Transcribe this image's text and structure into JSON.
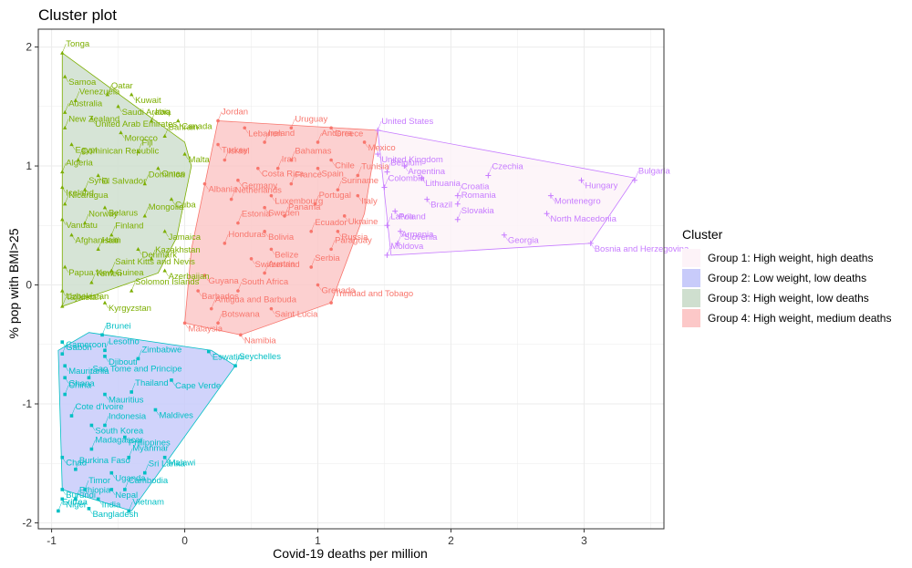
{
  "chart_data": {
    "type": "scatter",
    "title": "Cluster plot",
    "xlabel": "Covid-19 deaths per million",
    "ylabel": "% pop with BMI>25",
    "xlim": [
      -1.1,
      3.6
    ],
    "ylim": [
      -2.05,
      2.15
    ],
    "xticks": [
      -1,
      0,
      1,
      2,
      3
    ],
    "yticks": [
      -2,
      -1,
      0,
      1,
      2
    ],
    "grid": true,
    "legend": {
      "title": "Cluster",
      "position": "right",
      "entries": [
        {
          "label": "Group 1: High weight, high deaths",
          "color": "#C77CFF",
          "fill": "#FDF3F8"
        },
        {
          "label": "Group 2: Low weight, low deaths",
          "color": "#00BFC4",
          "fill": "#C8CBFA"
        },
        {
          "label": "Group 3: High weight, low deaths",
          "color": "#7CAE00",
          "fill": "#CFDFCF"
        },
        {
          "label": "Group 4: High weight, medium deaths",
          "color": "#F8766D",
          "fill": "#FCC8C8"
        }
      ]
    },
    "series": [
      {
        "cluster": 1,
        "marker": "cross",
        "color": "#C77CFF",
        "hull": [
          [
            1.45,
            1.3
          ],
          [
            1.55,
            0.25
          ],
          [
            3.05,
            0.35
          ],
          [
            3.38,
            0.9
          ]
        ],
        "points": [
          {
            "name": "United States",
            "x": 1.45,
            "y": 1.3
          },
          {
            "name": "United Kingdom",
            "x": 1.45,
            "y": 1.1
          },
          {
            "name": "Belgium",
            "x": 1.52,
            "y": 0.95
          },
          {
            "name": "Argentina",
            "x": 1.65,
            "y": 1.0
          },
          {
            "name": "Colombia",
            "x": 1.5,
            "y": 0.82
          },
          {
            "name": "Lithuania",
            "x": 1.78,
            "y": 0.9
          },
          {
            "name": "Czechia",
            "x": 2.28,
            "y": 0.92
          },
          {
            "name": "Hungary",
            "x": 2.98,
            "y": 0.88
          },
          {
            "name": "Bulgaria",
            "x": 3.38,
            "y": 0.88
          },
          {
            "name": "Montenegro",
            "x": 2.75,
            "y": 0.75
          },
          {
            "name": "Croatia",
            "x": 2.05,
            "y": 0.75
          },
          {
            "name": "Brazil",
            "x": 1.82,
            "y": 0.72
          },
          {
            "name": "Romania",
            "x": 2.05,
            "y": 0.68
          },
          {
            "name": "Poland",
            "x": 1.58,
            "y": 0.62
          },
          {
            "name": "Slovakia",
            "x": 2.05,
            "y": 0.55
          },
          {
            "name": "North Macedonia",
            "x": 2.72,
            "y": 0.6
          },
          {
            "name": "Latvia",
            "x": 1.52,
            "y": 0.5
          },
          {
            "name": "Slovenia",
            "x": 1.62,
            "y": 0.45
          },
          {
            "name": "Armenia",
            "x": 1.6,
            "y": 0.35
          },
          {
            "name": "Georgia",
            "x": 2.4,
            "y": 0.42
          },
          {
            "name": "Moldova",
            "x": 1.52,
            "y": 0.25
          },
          {
            "name": "Bosnia and Herzegovina",
            "x": 3.05,
            "y": 0.35
          }
        ]
      },
      {
        "cluster": 2,
        "marker": "square",
        "color": "#00BFC4",
        "hull": [
          [
            -0.95,
            -0.55
          ],
          [
            -0.72,
            -0.4
          ],
          [
            0.2,
            -0.55
          ],
          [
            0.38,
            -0.68
          ],
          [
            -0.4,
            -1.9
          ],
          [
            -0.92,
            -1.72
          ]
        ],
        "points": [
          {
            "name": "Brunei",
            "x": -0.62,
            "y": -0.42
          },
          {
            "name": "Gabon",
            "x": -0.92,
            "y": -0.48
          },
          {
            "name": "Lesotho",
            "x": -0.6,
            "y": -0.55
          },
          {
            "name": "Eswatini",
            "x": 0.18,
            "y": -0.56
          },
          {
            "name": "Cameroon",
            "x": -0.92,
            "y": -0.58
          },
          {
            "name": "Djibouti",
            "x": -0.6,
            "y": -0.6
          },
          {
            "name": "Zimbabwe",
            "x": -0.35,
            "y": -0.62
          },
          {
            "name": "Mauritania",
            "x": -0.9,
            "y": -0.68
          },
          {
            "name": "Seychelles",
            "x": 0.38,
            "y": -0.68
          },
          {
            "name": "Ghana",
            "x": -0.9,
            "y": -0.78
          },
          {
            "name": "Sao Tome and Principe",
            "x": -0.72,
            "y": -0.78
          },
          {
            "name": "Cape Verde",
            "x": -0.1,
            "y": -0.8
          },
          {
            "name": "China",
            "x": -0.9,
            "y": -0.92
          },
          {
            "name": "Mauritius",
            "x": -0.6,
            "y": -0.92
          },
          {
            "name": "Thailand",
            "x": -0.4,
            "y": -0.9
          },
          {
            "name": "Maldives",
            "x": -0.22,
            "y": -1.05
          },
          {
            "name": "Cote d'Ivoire",
            "x": -0.85,
            "y": -1.1
          },
          {
            "name": "South Korea",
            "x": -0.7,
            "y": -1.18
          },
          {
            "name": "Indonesia",
            "x": -0.6,
            "y": -1.18
          },
          {
            "name": "Philippines",
            "x": -0.45,
            "y": -1.28
          },
          {
            "name": "Madagascar",
            "x": -0.7,
            "y": -1.38
          },
          {
            "name": "Chad",
            "x": -0.92,
            "y": -1.45
          },
          {
            "name": "Myanmar",
            "x": -0.42,
            "y": -1.45
          },
          {
            "name": "Malawi",
            "x": -0.15,
            "y": -1.45
          },
          {
            "name": "Burkina Faso",
            "x": -0.82,
            "y": -1.55
          },
          {
            "name": "Uganda",
            "x": -0.55,
            "y": -1.58
          },
          {
            "name": "Sri Lanka",
            "x": -0.3,
            "y": -1.58
          },
          {
            "name": "Burundi",
            "x": -0.92,
            "y": -1.72
          },
          {
            "name": "Timor",
            "x": -0.75,
            "y": -1.72
          },
          {
            "name": "Nepal",
            "x": -0.55,
            "y": -1.72
          },
          {
            "name": "Cambodia",
            "x": -0.45,
            "y": -1.72
          },
          {
            "name": "Niger",
            "x": -0.92,
            "y": -1.8
          },
          {
            "name": "Ethiopia",
            "x": -0.82,
            "y": -1.8
          },
          {
            "name": "India",
            "x": -0.65,
            "y": -1.8
          },
          {
            "name": "Eritrea",
            "x": -0.95,
            "y": -1.9
          },
          {
            "name": "Bangladesh",
            "x": -0.72,
            "y": -1.88
          },
          {
            "name": "Vietnam",
            "x": -0.42,
            "y": -1.9
          }
        ]
      },
      {
        "cluster": 3,
        "marker": "triangle",
        "color": "#7CAE00",
        "hull": [
          [
            -0.92,
            1.95
          ],
          [
            0.0,
            1.2
          ],
          [
            0.05,
            1.0
          ],
          [
            -0.06,
            0.4
          ],
          [
            -0.2,
            0.1
          ],
          [
            -0.92,
            -0.18
          ]
        ],
        "points": [
          {
            "name": "Tonga",
            "x": -0.92,
            "y": 1.95
          },
          {
            "name": "Samoa",
            "x": -0.9,
            "y": 1.75
          },
          {
            "name": "Qatar",
            "x": -0.58,
            "y": 1.6
          },
          {
            "name": "Kuwait",
            "x": -0.4,
            "y": 1.6
          },
          {
            "name": "Venezuela",
            "x": -0.82,
            "y": 1.55
          },
          {
            "name": "Saudi Arabia",
            "x": -0.5,
            "y": 1.5
          },
          {
            "name": "Australia",
            "x": -0.9,
            "y": 1.45
          },
          {
            "name": "United Arab Emirates",
            "x": -0.7,
            "y": 1.4
          },
          {
            "name": "Iraq",
            "x": -0.25,
            "y": 1.38
          },
          {
            "name": "Canada",
            "x": -0.05,
            "y": 1.38
          },
          {
            "name": "New Zealand",
            "x": -0.9,
            "y": 1.32
          },
          {
            "name": "Morocco",
            "x": -0.48,
            "y": 1.28
          },
          {
            "name": "Bahrain",
            "x": -0.15,
            "y": 1.25
          },
          {
            "name": "Egypt",
            "x": -0.85,
            "y": 1.18
          },
          {
            "name": "Fiji",
            "x": -0.35,
            "y": 1.12
          },
          {
            "name": "Malta",
            "x": 0.0,
            "y": 1.1
          },
          {
            "name": "Dominican Republic",
            "x": -0.8,
            "y": 1.05
          },
          {
            "name": "Oman",
            "x": -0.2,
            "y": 0.98
          },
          {
            "name": "Algeria",
            "x": -0.92,
            "y": 0.95
          },
          {
            "name": "El Salvador",
            "x": -0.65,
            "y": 0.92
          },
          {
            "name": "Dominica",
            "x": -0.3,
            "y": 0.85
          },
          {
            "name": "Iceland",
            "x": -0.92,
            "y": 0.82
          },
          {
            "name": "Syria",
            "x": -0.75,
            "y": 0.8
          },
          {
            "name": "Cuba",
            "x": -0.1,
            "y": 0.72
          },
          {
            "name": "Nicaragua",
            "x": -0.9,
            "y": 0.68
          },
          {
            "name": "Belarus",
            "x": -0.6,
            "y": 0.65
          },
          {
            "name": "Mongolia",
            "x": -0.3,
            "y": 0.58
          },
          {
            "name": "Vanuatu",
            "x": -0.92,
            "y": 0.55
          },
          {
            "name": "Norway",
            "x": -0.75,
            "y": 0.52
          },
          {
            "name": "Afghanistan",
            "x": -0.85,
            "y": 0.42
          },
          {
            "name": "Finland",
            "x": -0.55,
            "y": 0.42
          },
          {
            "name": "Jamaica",
            "x": -0.15,
            "y": 0.45
          },
          {
            "name": "Haiti",
            "x": -0.65,
            "y": 0.3
          },
          {
            "name": "Denmark",
            "x": -0.35,
            "y": 0.3
          },
          {
            "name": "Kazakhstan",
            "x": -0.25,
            "y": 0.22
          },
          {
            "name": "Papua New Guinea",
            "x": -0.9,
            "y": 0.15
          },
          {
            "name": "Saint Kitts and Nevis",
            "x": -0.55,
            "y": 0.12
          },
          {
            "name": "Azerbaijan",
            "x": -0.15,
            "y": 0.12
          },
          {
            "name": "Yemen",
            "x": -0.7,
            "y": 0.02
          },
          {
            "name": "Uzbekistan",
            "x": -0.92,
            "y": -0.05
          },
          {
            "name": "Solomon Islands",
            "x": -0.4,
            "y": -0.05
          },
          {
            "name": "Kyrgyzstan",
            "x": -0.6,
            "y": -0.15
          },
          {
            "name": "Tajikistan",
            "x": -0.92,
            "y": -0.18
          }
        ]
      },
      {
        "cluster": 4,
        "marker": "circle",
        "color": "#F8766D",
        "hull": [
          [
            0.25,
            1.38
          ],
          [
            1.45,
            1.3
          ],
          [
            1.35,
            0.6
          ],
          [
            1.1,
            -0.15
          ],
          [
            0.42,
            -0.42
          ],
          [
            0.0,
            -0.32
          ],
          [
            0.05,
            0.3
          ]
        ],
        "points": [
          {
            "name": "Jordan",
            "x": 0.25,
            "y": 1.38
          },
          {
            "name": "Lebanon",
            "x": 0.45,
            "y": 1.32
          },
          {
            "name": "Uruguay",
            "x": 0.8,
            "y": 1.32
          },
          {
            "name": "Greece",
            "x": 1.1,
            "y": 1.32
          },
          {
            "name": "Andorra",
            "x": 1.0,
            "y": 1.2
          },
          {
            "name": "Mexico",
            "x": 1.35,
            "y": 1.2
          },
          {
            "name": "Ireland",
            "x": 0.6,
            "y": 1.2
          },
          {
            "name": "Turkey",
            "x": 0.25,
            "y": 1.18
          },
          {
            "name": "Bahamas",
            "x": 0.8,
            "y": 1.05
          },
          {
            "name": "Chile",
            "x": 1.1,
            "y": 1.05
          },
          {
            "name": "Israel",
            "x": 0.3,
            "y": 1.05
          },
          {
            "name": "Costa Rica",
            "x": 0.55,
            "y": 0.98
          },
          {
            "name": "Iran",
            "x": 0.7,
            "y": 0.98
          },
          {
            "name": "Spain",
            "x": 1.0,
            "y": 0.98
          },
          {
            "name": "Tunisia",
            "x": 1.3,
            "y": 0.92
          },
          {
            "name": "Germany",
            "x": 0.4,
            "y": 0.88
          },
          {
            "name": "France",
            "x": 0.8,
            "y": 0.85
          },
          {
            "name": "Albania",
            "x": 0.15,
            "y": 0.85
          },
          {
            "name": "Suriname",
            "x": 1.15,
            "y": 0.8
          },
          {
            "name": "Luxembourg",
            "x": 0.65,
            "y": 0.75
          },
          {
            "name": "Netherlands",
            "x": 0.35,
            "y": 0.72
          },
          {
            "name": "Italy",
            "x": 1.3,
            "y": 0.75
          },
          {
            "name": "Portugal",
            "x": 0.98,
            "y": 0.68
          },
          {
            "name": "Sweden",
            "x": 0.6,
            "y": 0.65
          },
          {
            "name": "Panama",
            "x": 0.75,
            "y": 0.58
          },
          {
            "name": "Ukraine",
            "x": 1.2,
            "y": 0.58
          },
          {
            "name": "Estonia",
            "x": 0.4,
            "y": 0.52
          },
          {
            "name": "Bolivia",
            "x": 0.6,
            "y": 0.45
          },
          {
            "name": "Ecuador",
            "x": 0.95,
            "y": 0.45
          },
          {
            "name": "Russia",
            "x": 1.15,
            "y": 0.45
          },
          {
            "name": "Honduras",
            "x": 0.3,
            "y": 0.35
          },
          {
            "name": "Belize",
            "x": 0.65,
            "y": 0.3
          },
          {
            "name": "Paraguay",
            "x": 1.1,
            "y": 0.3
          },
          {
            "name": "Switzerland",
            "x": 0.5,
            "y": 0.22
          },
          {
            "name": "Serbia",
            "x": 0.95,
            "y": 0.15
          },
          {
            "name": "Guyana",
            "x": 0.15,
            "y": 0.08
          },
          {
            "name": "Austria",
            "x": 0.6,
            "y": 0.1
          },
          {
            "name": "Barbados",
            "x": 0.1,
            "y": -0.05
          },
          {
            "name": "South Africa",
            "x": 0.4,
            "y": -0.05
          },
          {
            "name": "Grenada",
            "x": 1.0,
            "y": 0.0
          },
          {
            "name": "Antigua and Barbuda",
            "x": 0.2,
            "y": -0.2
          },
          {
            "name": "Saint Lucia",
            "x": 0.65,
            "y": -0.2
          },
          {
            "name": "Trinidad and Tobago",
            "x": 1.1,
            "y": -0.15
          },
          {
            "name": "Malaysia",
            "x": 0.0,
            "y": -0.32
          },
          {
            "name": "Botswana",
            "x": 0.25,
            "y": -0.32
          },
          {
            "name": "Namibia",
            "x": 0.42,
            "y": -0.42
          }
        ]
      }
    ]
  }
}
